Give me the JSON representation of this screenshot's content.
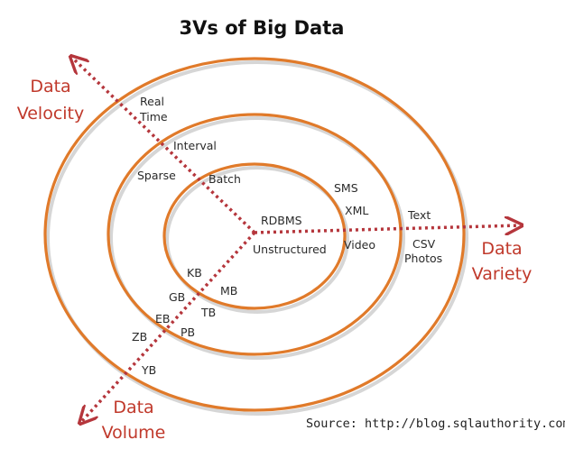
{
  "title": "3Vs of Big Data",
  "source": "Source: http://blog.sqlauthority.com",
  "colors": {
    "ring": "#e07a2a",
    "axis": "#b5363c",
    "axis_label": "#c0392b",
    "ring_shadow": "#cfcfcf"
  },
  "axes": {
    "velocity": {
      "label_line1": "Data",
      "label_line2": "Velocity"
    },
    "variety": {
      "label_line1": "Data",
      "label_line2": "Variety"
    },
    "volume": {
      "label_line1": "Data",
      "label_line2": "Volume"
    }
  },
  "velocity_labels": {
    "batch": "Batch",
    "sparse": "Sparse",
    "interval": "Interval",
    "real": "Real",
    "time": "Time"
  },
  "variety_labels": {
    "rdbms": "RDBMS",
    "unstructured": "Unstructured",
    "sms": "SMS",
    "xml": "XML",
    "video": "Video",
    "text": "Text",
    "csv": "CSV",
    "photos": "Photos"
  },
  "volume_labels": {
    "kb": "KB",
    "mb": "MB",
    "gb": "GB",
    "tb": "TB",
    "eb": "EB",
    "pb": "PB",
    "zb": "ZB",
    "yb": "YB"
  }
}
